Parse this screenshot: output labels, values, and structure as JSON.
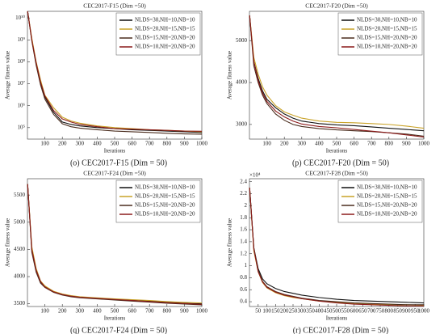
{
  "chart_data": [
    {
      "type": "line",
      "title": "CEC2017-F15 (Dim =50)",
      "caption": "(o) CEC2017-F15 (Dim = 50)",
      "xlabel": "Iterations",
      "ylabel": "Average fitness value",
      "ylog": true,
      "legend": "upper right",
      "x": [
        1,
        25,
        50,
        75,
        100,
        150,
        200,
        250,
        300,
        400,
        500,
        600,
        700,
        800,
        900,
        1000
      ],
      "xlim": [
        0,
        1000
      ],
      "xticks": [
        100,
        200,
        300,
        400,
        500,
        600,
        700,
        800,
        900,
        1000
      ],
      "ylim": [
        30000,
        20000000000
      ],
      "yticks": [
        {
          "value": 100000,
          "label": "10⁵"
        },
        {
          "value": 1000000,
          "label": "10⁶"
        },
        {
          "value": 10000000,
          "label": "10⁷"
        },
        {
          "value": 100000000,
          "label": "10⁸"
        },
        {
          "value": 1000000000,
          "label": "10⁹"
        },
        {
          "value": 10000000000,
          "label": "10¹⁰"
        }
      ],
      "series": [
        {
          "name": "NLDS=30,NH=10,NB=10",
          "color": "#111111",
          "values": [
            20000000000,
            1000000000,
            80000000,
            10000000,
            2500000,
            500000,
            180000,
            140000,
            120000,
            100000,
            90000,
            80000,
            75000,
            70000,
            65000,
            60000
          ]
        },
        {
          "name": "NLDS=20,NH=15,NB=15",
          "color": "#c9a227",
          "values": [
            20000000000,
            1200000000,
            100000000,
            15000000,
            3000000,
            800000,
            300000,
            200000,
            160000,
            120000,
            100000,
            90000,
            80000,
            75000,
            70000,
            65000
          ]
        },
        {
          "name": "NLDS=15,NH=20,NB=20",
          "color": "#4a2c1d",
          "values": [
            20000000000,
            900000000,
            70000000,
            9000000,
            2000000,
            400000,
            150000,
            110000,
            95000,
            80000,
            70000,
            65000,
            60000,
            55000,
            52000,
            50000
          ]
        },
        {
          "name": "NLDS=10,NH=20,NB=20",
          "color": "#8b1a1a",
          "values": [
            20000000000,
            1000000000,
            90000000,
            12000000,
            2800000,
            600000,
            250000,
            180000,
            140000,
            110000,
            90000,
            85000,
            80000,
            75000,
            70000,
            68000
          ]
        }
      ]
    },
    {
      "type": "line",
      "title": "CEC2017-F20 (Dim =50)",
      "caption": "(p) CEC2017-F20 (Dim = 50)",
      "xlabel": "Iterations",
      "ylabel": "Average fitness value",
      "legend": "upper right",
      "x": [
        1,
        25,
        50,
        75,
        100,
        150,
        200,
        250,
        300,
        400,
        500,
        600,
        700,
        800,
        900,
        1000
      ],
      "xlim": [
        0,
        1000
      ],
      "xticks": [
        100,
        200,
        300,
        400,
        500,
        600,
        700,
        800,
        900,
        1000
      ],
      "ylim": [
        2650,
        5700
      ],
      "yticks": [
        3000,
        4000,
        5000
      ],
      "series": [
        {
          "name": "NLDS=30,NH=10,NB=10",
          "color": "#111111",
          "values": [
            5600,
            4500,
            4100,
            3800,
            3600,
            3400,
            3250,
            3150,
            3080,
            3020,
            2990,
            2970,
            2940,
            2910,
            2880,
            2850
          ]
        },
        {
          "name": "NLDS=20,NH=15,NB=15",
          "color": "#c9a227",
          "values": [
            5600,
            4600,
            4200,
            3900,
            3700,
            3450,
            3300,
            3220,
            3150,
            3080,
            3050,
            3040,
            3020,
            3000,
            2960,
            2910
          ]
        },
        {
          "name": "NLDS=15,NH=20,NB=20",
          "color": "#4a2c1d",
          "values": [
            5600,
            4400,
            4000,
            3700,
            3500,
            3250,
            3100,
            3000,
            2950,
            2900,
            2870,
            2850,
            2830,
            2800,
            2770,
            2720
          ]
        },
        {
          "name": "NLDS=10,NH=20,NB=20",
          "color": "#8b1a1a",
          "values": [
            5600,
            4500,
            4050,
            3750,
            3550,
            3320,
            3180,
            3080,
            3010,
            2950,
            2920,
            2880,
            2840,
            2800,
            2750,
            2700
          ]
        }
      ]
    },
    {
      "type": "line",
      "title": "CEC2017-F24 (Dim =50)",
      "caption": "(q) CEC2017-F24 (Dim = 50)",
      "xlabel": "Iterations",
      "ylabel": "Average fitness value",
      "legend": "upper right",
      "x": [
        1,
        25,
        50,
        75,
        100,
        150,
        200,
        250,
        300,
        400,
        500,
        600,
        700,
        800,
        900,
        1000
      ],
      "xlim": [
        0,
        1000
      ],
      "xticks": [
        100,
        200,
        300,
        400,
        500,
        600,
        700,
        800,
        900,
        1000
      ],
      "ylim": [
        3450,
        5800
      ],
      "yticks": [
        3500,
        4000,
        4500,
        5000,
        5500
      ],
      "series": [
        {
          "name": "NLDS=30,NH=10,NB=10",
          "color": "#111111",
          "values": [
            5700,
            4500,
            4100,
            3900,
            3820,
            3720,
            3670,
            3640,
            3620,
            3600,
            3580,
            3570,
            3550,
            3530,
            3510,
            3500
          ]
        },
        {
          "name": "NLDS=20,NH=15,NB=15",
          "color": "#c9a227",
          "values": [
            5700,
            4550,
            4150,
            3920,
            3830,
            3730,
            3680,
            3650,
            3630,
            3610,
            3590,
            3575,
            3560,
            3540,
            3525,
            3515
          ]
        },
        {
          "name": "NLDS=15,NH=20,NB=20",
          "color": "#4a2c1d",
          "values": [
            5700,
            4450,
            4080,
            3880,
            3800,
            3710,
            3660,
            3630,
            3610,
            3590,
            3570,
            3550,
            3530,
            3510,
            3495,
            3480
          ]
        },
        {
          "name": "NLDS=10,NH=20,NB=20",
          "color": "#8b1a1a",
          "values": [
            5700,
            4500,
            4120,
            3910,
            3810,
            3720,
            3670,
            3640,
            3620,
            3600,
            3580,
            3560,
            3540,
            3520,
            3505,
            3490
          ]
        }
      ]
    },
    {
      "type": "line",
      "title": "CEC2017-F28 (Dim =50)",
      "caption": "(r) CEC2017-F28 (Dim = 50)",
      "xlabel": "Iterations",
      "ylabel": "Average fitness value",
      "y_multiplier": "×10⁴",
      "legend": "upper right",
      "x": [
        1,
        25,
        50,
        75,
        100,
        150,
        200,
        250,
        300,
        400,
        500,
        600,
        700,
        800,
        900,
        1000
      ],
      "xlim": [
        0,
        1000
      ],
      "xticks": [
        50,
        100,
        150,
        200,
        250,
        300,
        350,
        400,
        450,
        500,
        550,
        600,
        650,
        700,
        750,
        800,
        850,
        900,
        950,
        1000
      ],
      "ylim": [
        0.32,
        2.45
      ],
      "yticks": [
        0.4,
        0.6,
        0.8,
        1,
        1.2,
        1.4,
        1.6,
        1.8,
        2,
        2.2,
        2.4
      ],
      "series": [
        {
          "name": "NLDS=30,NH=10,NB=10",
          "color": "#111111",
          "values": [
            2.3,
            1.3,
            0.95,
            0.78,
            0.7,
            0.62,
            0.57,
            0.54,
            0.51,
            0.47,
            0.44,
            0.42,
            0.41,
            0.4,
            0.39,
            0.38
          ]
        },
        {
          "name": "NLDS=20,NH=15,NB=15",
          "color": "#c9a227",
          "values": [
            2.3,
            1.25,
            0.9,
            0.72,
            0.63,
            0.55,
            0.5,
            0.47,
            0.45,
            0.41,
            0.39,
            0.37,
            0.36,
            0.35,
            0.35,
            0.34
          ]
        },
        {
          "name": "NLDS=15,NH=20,NB=20",
          "color": "#4a2c1d",
          "values": [
            2.3,
            1.3,
            0.92,
            0.74,
            0.65,
            0.57,
            0.52,
            0.49,
            0.46,
            0.42,
            0.4,
            0.38,
            0.37,
            0.36,
            0.35,
            0.35
          ]
        },
        {
          "name": "NLDS=10,NH=20,NB=20",
          "color": "#8b1a1a",
          "values": [
            2.3,
            1.28,
            0.9,
            0.73,
            0.64,
            0.56,
            0.51,
            0.48,
            0.45,
            0.41,
            0.38,
            0.36,
            0.35,
            0.34,
            0.33,
            0.33
          ]
        }
      ]
    }
  ]
}
